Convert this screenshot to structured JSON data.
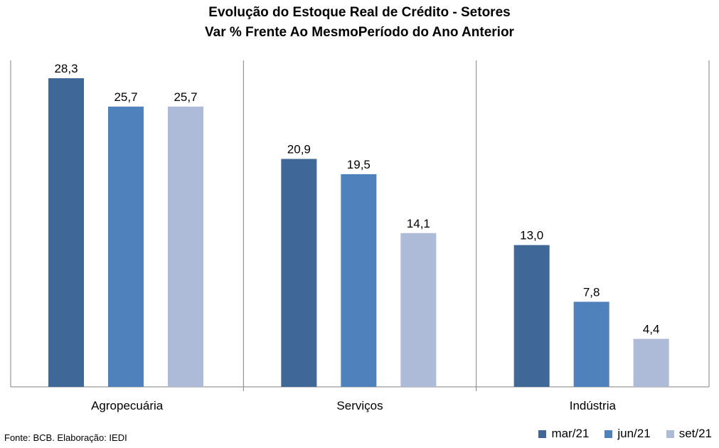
{
  "chart_data": {
    "type": "bar",
    "title": "Evolução do Estoque Real de Crédito - Setores",
    "subtitle": "Var % Frente Ao MesmoPeríodo do Ano Anterior",
    "categories": [
      "Agropecuária",
      "Serviços",
      "Indústria"
    ],
    "series": [
      {
        "name": "mar/21",
        "color": "#3f6899",
        "values": [
          28.3,
          20.9,
          13.0
        ],
        "labels": [
          "28,3",
          "20,9",
          "13,0"
        ]
      },
      {
        "name": "jun/21",
        "color": "#4f81bd",
        "values": [
          25.7,
          19.5,
          7.8
        ],
        "labels": [
          "25,7",
          "19,5",
          "7,8"
        ]
      },
      {
        "name": "set/21",
        "color": "#aebbd8",
        "values": [
          25.7,
          14.1,
          4.4
        ],
        "labels": [
          "25,7",
          "14,1",
          "4,4"
        ]
      }
    ],
    "ylim": [
      0,
      30
    ],
    "grid": false,
    "legend_position": "bottom-right"
  },
  "source": "Fonte: BCB. Elaboração: IEDI"
}
